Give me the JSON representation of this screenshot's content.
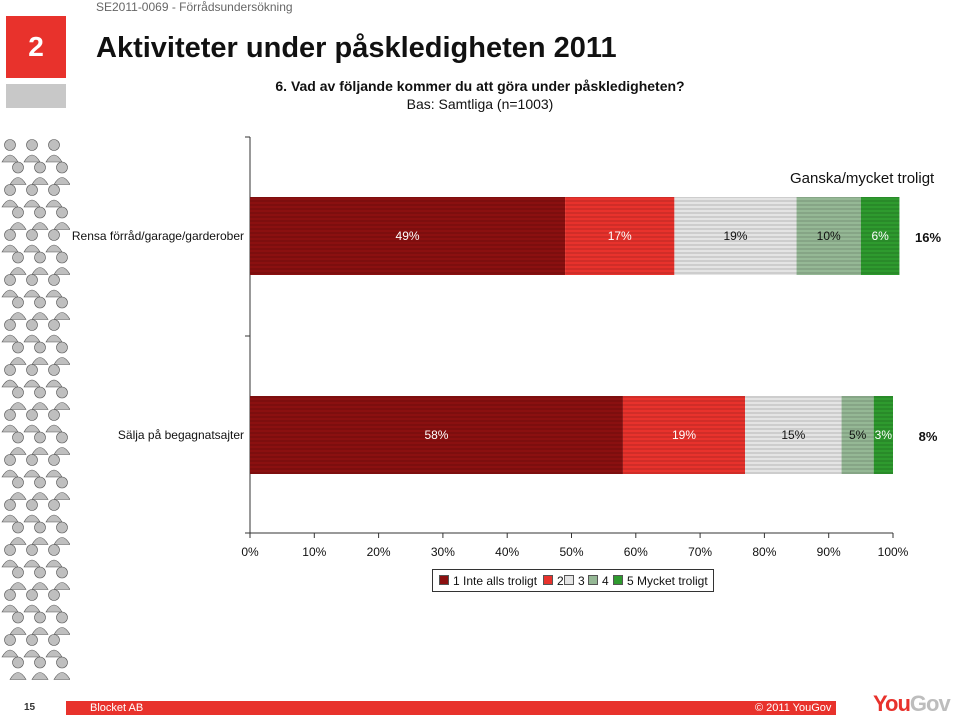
{
  "header": {
    "project_code": "SE2011-0069 - Förrådsundersökning",
    "slide_number": "2",
    "title": "Aktiviteter under påskledigheten 2011"
  },
  "question": "6. Vad av följande kommer du att göra under påskledigheten?",
  "base": "Bas: Samtliga (n=1003)",
  "chart_data": {
    "type": "bar",
    "orientation": "horizontal",
    "stacked": true,
    "categories": [
      "Rensa förråd/garage/garderober",
      "Sälja på begagnatsajter"
    ],
    "series": [
      {
        "name": "1 Inte alls troligt",
        "values": [
          49,
          58
        ],
        "color": "#8b1010"
      },
      {
        "name": "2",
        "values": [
          17,
          19
        ],
        "color": "#e8322c"
      },
      {
        "name": "3",
        "values": [
          19,
          15
        ],
        "color": "#e4e4e4"
      },
      {
        "name": "4",
        "values": [
          10,
          5
        ],
        "color": "#95b895"
      },
      {
        "name": "5 Mycket troligt",
        "values": [
          6,
          3
        ],
        "color": "#2e9a2e"
      }
    ],
    "value_labels": [
      [
        "49%",
        "17%",
        "19%",
        "10%",
        "6%"
      ],
      [
        "58%",
        "19%",
        "15%",
        "5%",
        "3%"
      ]
    ],
    "xlim": [
      0,
      100
    ],
    "x_ticks": [
      "0%",
      "10%",
      "20%",
      "30%",
      "40%",
      "50%",
      "60%",
      "70%",
      "80%",
      "90%",
      "100%"
    ],
    "side_header": "Ganska/mycket troligt",
    "side_values": [
      "16%",
      "8%"
    ],
    "legend_position": "bottom"
  },
  "footer": {
    "page_number": "15",
    "left": "Blocket AB",
    "right": "© 2011 YouGov",
    "logo_you": "You",
    "logo_gov": "Gov"
  }
}
